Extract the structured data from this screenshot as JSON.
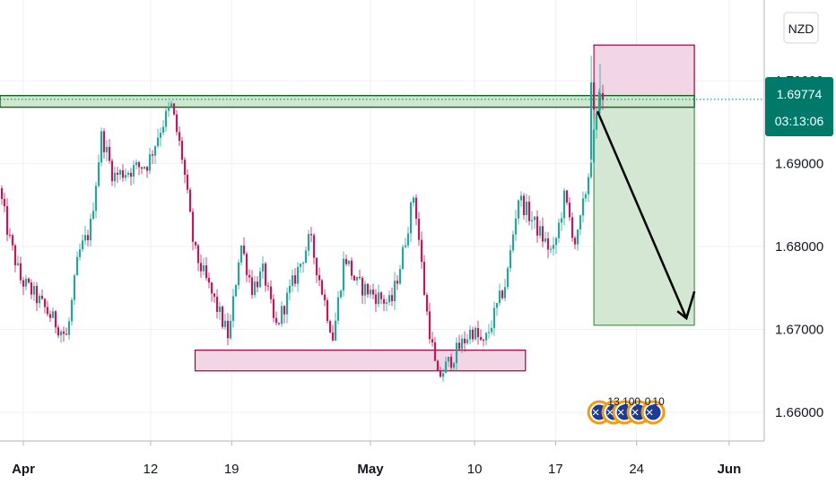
{
  "currency_button": "NZD",
  "price_badge": {
    "price": "1.69774",
    "countdown": "03:13:06",
    "color": "#00796b"
  },
  "event_markers": [
    "13",
    "100",
    "0",
    "10"
  ],
  "colors": {
    "up": "#26a69a",
    "down": "#c2185b",
    "zone_fill": "#f3d6e6",
    "zone_stroke": "#a0003c",
    "target_fill": "#d3e7d3",
    "target_stroke": "#2e7d32",
    "resistance_line": "#1b5e20",
    "axis_text": "#131722",
    "grid": "#eef0f3"
  },
  "chart_data": {
    "type": "candlestick",
    "symbol_currency": "NZD",
    "y_axis": {
      "ticks": [
        "1.70000",
        "1.69000",
        "1.68000",
        "1.67000",
        "1.66000"
      ],
      "range": [
        1.6563,
        1.7093
      ]
    },
    "x_axis": {
      "ticks": [
        {
          "label": "Apr",
          "bold": true,
          "date": "2021-04-01"
        },
        {
          "label": "12",
          "bold": false,
          "date": "2021-04-12"
        },
        {
          "label": "19",
          "bold": false,
          "date": "2021-04-19"
        },
        {
          "label": "May",
          "bold": true,
          "date": "2021-05-01"
        },
        {
          "label": "10",
          "bold": false,
          "date": "2021-05-10"
        },
        {
          "label": "17",
          "bold": false,
          "date": "2021-05-17"
        },
        {
          "label": "24",
          "bold": false,
          "date": "2021-05-24"
        },
        {
          "label": "Jun",
          "bold": true,
          "date": "2021-06-01"
        }
      ]
    },
    "last_price": 1.69774,
    "countdown": "03:13:06",
    "resistance_band": {
      "top": 1.6982,
      "bottom": 1.6968
    },
    "support_zone": {
      "top": 1.6675,
      "bottom": 1.665,
      "start": "2021-04-16",
      "end": "2021-05-13"
    },
    "stop_zone": {
      "top": 1.7043,
      "bottom": 1.698,
      "start": "2021-05-20",
      "end": "2021-05-29"
    },
    "target_zone": {
      "top": 1.698,
      "bottom": 1.6705,
      "start": "2021-05-20",
      "end": "2021-05-29"
    },
    "projection_arrow": {
      "from": {
        "date": "2021-05-20",
        "price": 1.6963
      },
      "to": {
        "date": "2021-05-29",
        "price": 1.6708
      }
    },
    "grid": true,
    "anchors": [
      [
        "2021-03-29",
        1.6798
      ],
      [
        "2021-03-30",
        1.688
      ],
      [
        "2021-03-31",
        1.681
      ],
      [
        "2021-04-01",
        1.676
      ],
      [
        "2021-04-02",
        1.6745
      ],
      [
        "2021-04-05",
        1.669
      ],
      [
        "2021-04-06",
        1.679
      ],
      [
        "2021-04-07",
        1.682
      ],
      [
        "2021-04-08",
        1.6935
      ],
      [
        "2021-04-09",
        1.6885
      ],
      [
        "2021-04-12",
        1.69
      ],
      [
        "2021-04-13",
        1.694
      ],
      [
        "2021-04-14",
        1.697
      ],
      [
        "2021-04-15",
        1.6905
      ],
      [
        "2021-04-16",
        1.6795
      ],
      [
        "2021-04-19",
        1.669
      ],
      [
        "2021-04-20",
        1.6805
      ],
      [
        "2021-04-21",
        1.675
      ],
      [
        "2021-04-22",
        1.677
      ],
      [
        "2021-04-23",
        1.67
      ],
      [
        "2021-04-26",
        1.681
      ],
      [
        "2021-04-27",
        1.675
      ],
      [
        "2021-04-28",
        1.669
      ],
      [
        "2021-04-29",
        1.679
      ],
      [
        "2021-04-30",
        1.6755
      ],
      [
        "2021-05-03",
        1.673
      ],
      [
        "2021-05-04",
        1.679
      ],
      [
        "2021-05-05",
        1.6865
      ],
      [
        "2021-05-06",
        1.673
      ],
      [
        "2021-05-07",
        1.664
      ],
      [
        "2021-05-10",
        1.67
      ],
      [
        "2021-05-11",
        1.668
      ],
      [
        "2021-05-12",
        1.672
      ],
      [
        "2021-05-13",
        1.676
      ],
      [
        "2021-05-14",
        1.686
      ],
      [
        "2021-05-17",
        1.679
      ],
      [
        "2021-05-18",
        1.686
      ],
      [
        "2021-05-19",
        1.68
      ],
      [
        "2021-05-20",
        1.688
      ],
      [
        "2021-05-21",
        1.6978
      ]
    ]
  }
}
